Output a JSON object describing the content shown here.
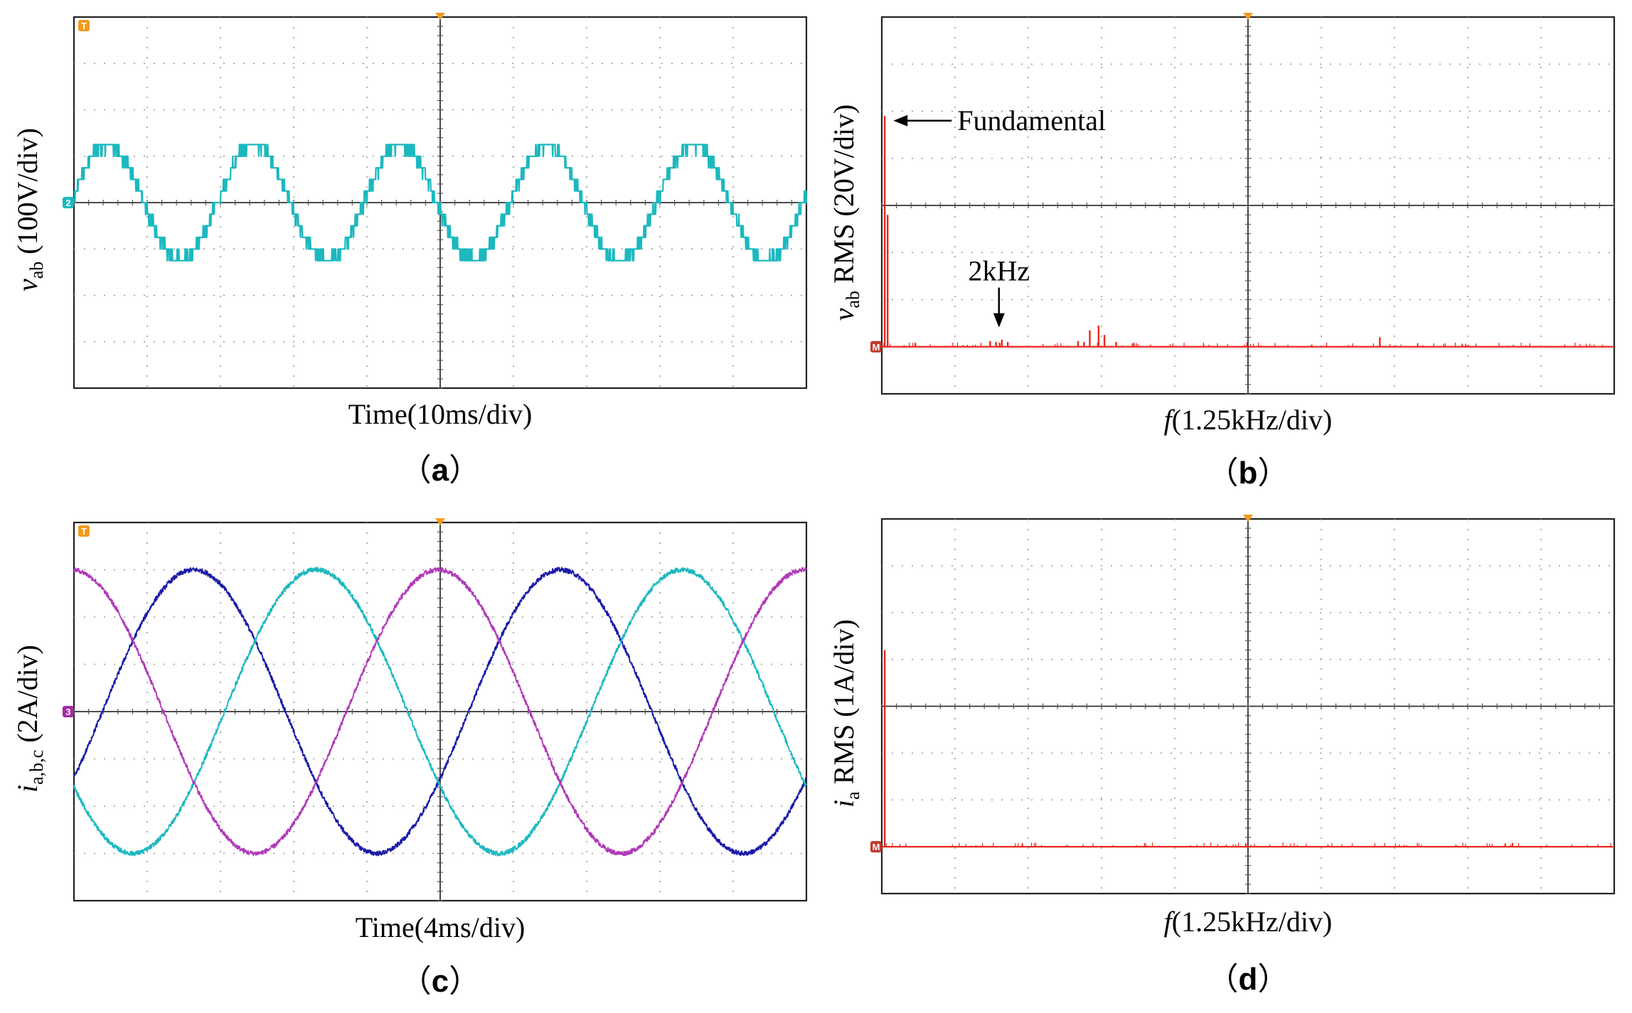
{
  "chart_data": [
    {
      "id": "a",
      "type": "line",
      "caption": "a",
      "ylabel": {
        "main": "v",
        "sub": "ab",
        "rest": " (100V/div)"
      },
      "xlabel": "Time(10ms/div)",
      "grid": true,
      "xlim": [
        0,
        100
      ],
      "ylim": [
        -4,
        4
      ],
      "units": {
        "x": "ms",
        "y": "div"
      },
      "series": [
        {
          "name": "v_ab",
          "color": "#1cb8bf",
          "kind": "multilevel",
          "amplitude": 1.25,
          "levels": 5,
          "frequency_hz": 50,
          "phase_deg": 8,
          "noise": 0.2
        }
      ],
      "markers": [
        {
          "text": "T",
          "color": "#f39a1e",
          "position": "top-left"
        },
        {
          "text": "2",
          "color": "#1cb8bf",
          "position": "left-zero"
        }
      ],
      "annotations": []
    },
    {
      "id": "b",
      "type": "bar",
      "caption": "b",
      "ylabel": {
        "main": "v",
        "sub": "ab",
        "rest": " RMS (20V/div)"
      },
      "xlabel": "f(1.25kHz/div)",
      "xlabel_italic": "f",
      "xlabel_rest": "(1.25kHz/div)",
      "grid": true,
      "xlim": [
        0,
        12.5
      ],
      "ylim": [
        0,
        8
      ],
      "units": {
        "x": "kHz",
        "y": "div"
      },
      "baseline_div": 1,
      "series": [
        {
          "name": "spectrum",
          "color": "#e8281d",
          "x": [
            0.05,
            0.1,
            1.85,
            1.95,
            2.05,
            2.15,
            3.35,
            3.45,
            3.55,
            3.7,
            3.8,
            4.0,
            4.3,
            8.5
          ],
          "values": [
            4.9,
            2.8,
            0.12,
            0.1,
            0.15,
            0.1,
            0.12,
            0.1,
            0.35,
            0.45,
            0.25,
            0.1,
            0.08,
            0.2
          ]
        }
      ],
      "markers": [
        {
          "text": "M",
          "color": "#c0392b",
          "position": "left-baseline"
        }
      ],
      "annotations": [
        {
          "text": "Fundamental",
          "arrow": "left",
          "x": 0.1,
          "y": 4.8
        },
        {
          "text": "2kHz",
          "arrow": "down",
          "x": 2.0,
          "y": 0.35
        }
      ]
    },
    {
      "id": "c",
      "type": "line",
      "caption": "c",
      "ylabel": {
        "main": "i",
        "sub": "a,b,c",
        "rest": " (2A/div)"
      },
      "xlabel": "Time(4ms/div)",
      "grid": true,
      "xlim": [
        0,
        40
      ],
      "ylim": [
        -4,
        4
      ],
      "units": {
        "x": "ms",
        "y": "div"
      },
      "series": [
        {
          "name": "i_a",
          "color": "#1a1aa6",
          "kind": "sine",
          "amplitude": 3.0,
          "frequency_hz": 50,
          "phase_deg": -28,
          "noise": 0.05
        },
        {
          "name": "i_b",
          "color": "#1cb8bf",
          "kind": "sine",
          "amplitude": 3.0,
          "frequency_hz": 50,
          "phase_deg": 212,
          "noise": 0.05
        },
        {
          "name": "i_c",
          "color": "#b03ab8",
          "kind": "sine",
          "amplitude": 3.0,
          "frequency_hz": 50,
          "phase_deg": 92,
          "noise": 0.05
        }
      ],
      "markers": [
        {
          "text": "T",
          "color": "#f39a1e",
          "position": "top-left"
        },
        {
          "text": "3",
          "color": "#a52aa5",
          "position": "left-zero"
        }
      ],
      "annotations": []
    },
    {
      "id": "d",
      "type": "bar",
      "caption": "d",
      "ylabel": {
        "main": "i",
        "sub": "a",
        "rest": " RMS (1A/div)"
      },
      "xlabel": "f(1.25kHz/div)",
      "xlabel_italic": "f",
      "xlabel_rest": "(1.25kHz/div)",
      "grid": true,
      "xlim": [
        0,
        12.5
      ],
      "ylim": [
        0,
        8
      ],
      "units": {
        "x": "kHz",
        "y": "div"
      },
      "baseline_div": 1,
      "series": [
        {
          "name": "spectrum",
          "color": "#e8281d",
          "x": [
            0.05,
            2.4
          ],
          "values": [
            4.2,
            0.05
          ]
        }
      ],
      "markers": [
        {
          "text": "M",
          "color": "#c0392b",
          "position": "left-baseline"
        }
      ],
      "annotations": []
    }
  ]
}
